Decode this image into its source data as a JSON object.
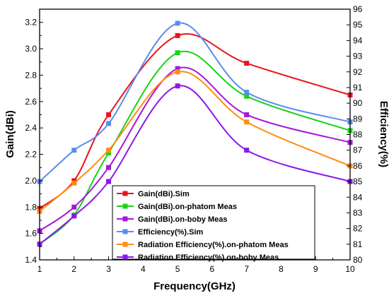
{
  "chart_data": {
    "type": "line",
    "xlabel": "Frequency(GHz)",
    "ylabel_left": "Gain(dBi)",
    "ylabel_right": "Efficiency(%)",
    "xlim": [
      1,
      10
    ],
    "ylim_left": [
      1.4,
      3.3
    ],
    "ylim_right": [
      80,
      96
    ],
    "x_ticks": [
      1,
      2,
      3,
      4,
      5,
      6,
      7,
      8,
      9,
      10
    ],
    "y_left_ticks": [
      1.4,
      1.6,
      1.8,
      2.0,
      2.2,
      2.4,
      2.6,
      2.8,
      3.0,
      3.2
    ],
    "y_right_ticks": [
      80,
      81,
      82,
      83,
      84,
      85,
      86,
      87,
      88,
      89,
      90,
      91,
      92,
      93,
      94,
      95,
      96
    ],
    "grid": false,
    "legend_position": "bottom-center",
    "series": [
      {
        "name": "Gain(dBi).Sim",
        "axis": "left",
        "color": "#e8141c",
        "x": [
          1,
          2,
          3,
          5,
          7,
          10
        ],
        "values": [
          1.79,
          2.0,
          2.5,
          3.1,
          2.89,
          2.65
        ]
      },
      {
        "name": "Gain(dBi).on-phatom Meas",
        "axis": "left",
        "color": "#18d418",
        "x": [
          1,
          2,
          3,
          5,
          7,
          10
        ],
        "values": [
          1.52,
          1.74,
          2.21,
          2.97,
          2.64,
          2.38
        ]
      },
      {
        "name": "Gain(dBi).on-boby Meas",
        "axis": "left",
        "color": "#a617d6",
        "x": [
          1,
          2,
          3,
          5,
          7,
          10
        ],
        "values": [
          1.62,
          1.8,
          2.1,
          2.85,
          2.5,
          2.29
        ]
      },
      {
        "name": "Efficiency(%).Sim",
        "axis": "right",
        "color": "#5a8cf0",
        "x": [
          1,
          2,
          3,
          5,
          7,
          10
        ],
        "values": [
          85.0,
          87.0,
          88.7,
          95.1,
          90.7,
          88.8
        ]
      },
      {
        "name": "Radiation Efficiency(%).on-phatom Meas",
        "axis": "right",
        "color": "#ff8c14",
        "x": [
          1,
          2,
          3,
          5,
          7,
          10
        ],
        "values": [
          83.1,
          84.9,
          87.0,
          92.0,
          88.8,
          86.0
        ]
      },
      {
        "name": "Radiation Efficiency(%).on-boby Meas",
        "axis": "right",
        "color": "#8c17e8",
        "x": [
          1,
          2,
          3,
          5,
          7,
          10
        ],
        "values": [
          81.0,
          82.8,
          85.0,
          91.1,
          87.0,
          85.0
        ]
      }
    ]
  }
}
